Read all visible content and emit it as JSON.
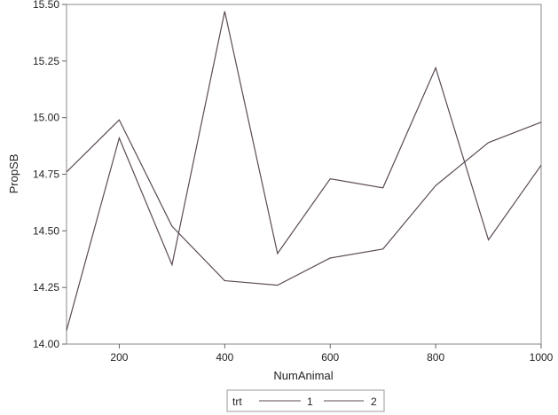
{
  "chart_data": {
    "type": "line",
    "xlabel": "NumAnimal",
    "ylabel": "PropSB",
    "x": [
      100,
      200,
      300,
      400,
      500,
      600,
      700,
      800,
      900,
      1000
    ],
    "xlim": [
      100,
      1000
    ],
    "ylim": [
      14.0,
      15.5
    ],
    "x_ticks": [
      200,
      400,
      600,
      800,
      1000
    ],
    "x_tick_labels": [
      "200",
      "400",
      "600",
      "800",
      "1000"
    ],
    "y_ticks": [
      14.0,
      14.25,
      14.5,
      14.75,
      15.0,
      15.25,
      15.5
    ],
    "y_tick_labels": [
      "14.00",
      "14.25",
      "14.50",
      "14.75",
      "15.00",
      "15.25",
      "15.50"
    ],
    "grid": false,
    "legend": {
      "title": "trt",
      "placement": "bottom-center"
    },
    "series": [
      {
        "name": "1",
        "values": [
          14.76,
          14.99,
          14.52,
          14.28,
          14.26,
          14.38,
          14.42,
          14.7,
          14.89,
          14.98
        ],
        "color": "#5b4b57"
      },
      {
        "name": "2",
        "values": [
          14.06,
          14.91,
          14.35,
          15.47,
          14.4,
          14.73,
          14.69,
          15.22,
          14.46,
          14.79
        ],
        "color": "#5b4b57"
      }
    ]
  }
}
